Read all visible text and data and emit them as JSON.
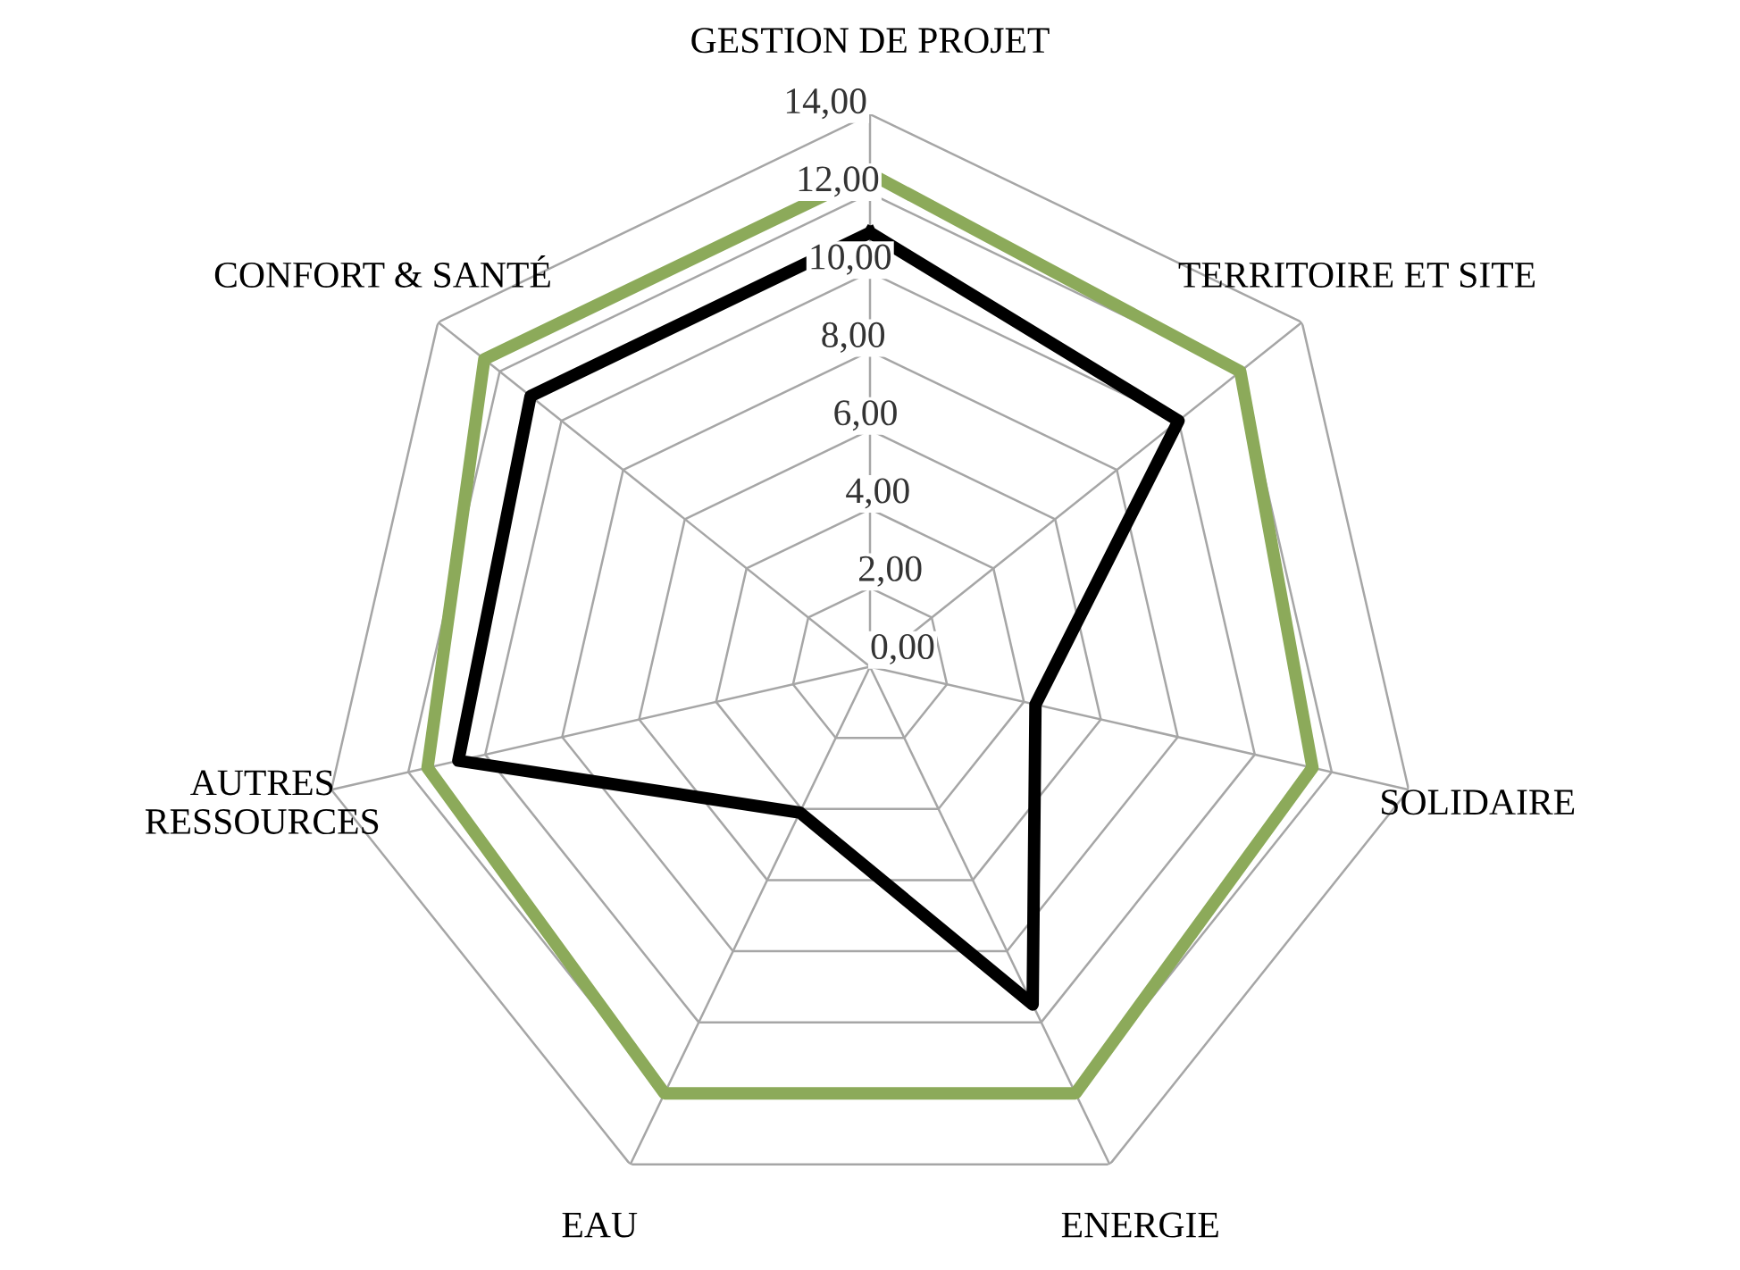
{
  "chart_data": {
    "type": "radar",
    "categories": [
      "GESTION DE PROJET",
      "TERRITOIRE ET SITE",
      "SOLIDAIRE",
      "ENERGIE",
      "EAU",
      "AUTRES\nRESSOURCES",
      "CONFORT & SANTÉ"
    ],
    "series": [
      {
        "color": "#8caa5a",
        "values": [
          12.5,
          12,
          11.5,
          12,
          12,
          11.5,
          12.5
        ]
      },
      {
        "color": "#000000",
        "values": [
          11,
          10,
          4.3,
          9.5,
          4.1,
          10.7,
          11
        ]
      }
    ],
    "ylim": [
      0,
      14
    ],
    "yticks": [
      {
        "value": 0,
        "label": "0,00"
      },
      {
        "value": 2,
        "label": "2,00"
      },
      {
        "value": 4,
        "label": "4,00"
      },
      {
        "value": 6,
        "label": "6,00"
      },
      {
        "value": 8,
        "label": "8,00"
      },
      {
        "value": 10,
        "label": "10,00"
      },
      {
        "value": 12,
        "label": "12,00"
      },
      {
        "value": 14,
        "label": "14,00"
      }
    ],
    "grid": true,
    "marker": "none",
    "line_style": "solid"
  }
}
